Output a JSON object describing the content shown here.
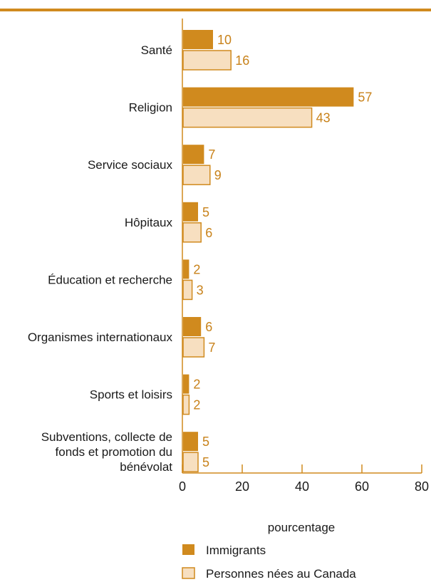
{
  "chart_data": {
    "type": "bar",
    "orientation": "horizontal",
    "categories": [
      "Santé",
      "Religion",
      "Service sociaux",
      "Hôpitaux",
      "Éducation et recherche",
      "Organismes internationaux",
      "Sports et loisirs",
      "Subventions, collecte de fonds et promotion du bénévolat"
    ],
    "category_lines": [
      [
        "Santé"
      ],
      [
        "Religion"
      ],
      [
        "Service sociaux"
      ],
      [
        "Hôpitaux"
      ],
      [
        "Éducation et recherche"
      ],
      [
        "Organismes internationaux"
      ],
      [
        "Sports et loisirs"
      ],
      [
        "Subventions, collecte de",
        "fonds et promotion du",
        "bénévolat"
      ]
    ],
    "series": [
      {
        "name": "Immigrants",
        "values": [
          10,
          57,
          7,
          5,
          2,
          6,
          2,
          5
        ],
        "color": "#d08a1e"
      },
      {
        "name": "Personnes nées au Canada",
        "values": [
          16,
          43,
          9,
          6,
          3,
          7,
          2,
          5
        ],
        "color": "#f7dfc0"
      }
    ],
    "xlabel": "pourcentage",
    "xlim": [
      0,
      80
    ],
    "xticks": [
      0,
      20,
      40,
      60,
      80
    ],
    "grid": false,
    "legend_position": "bottom",
    "accent_color": "#d08a1e",
    "label_color": "#c8821a"
  }
}
